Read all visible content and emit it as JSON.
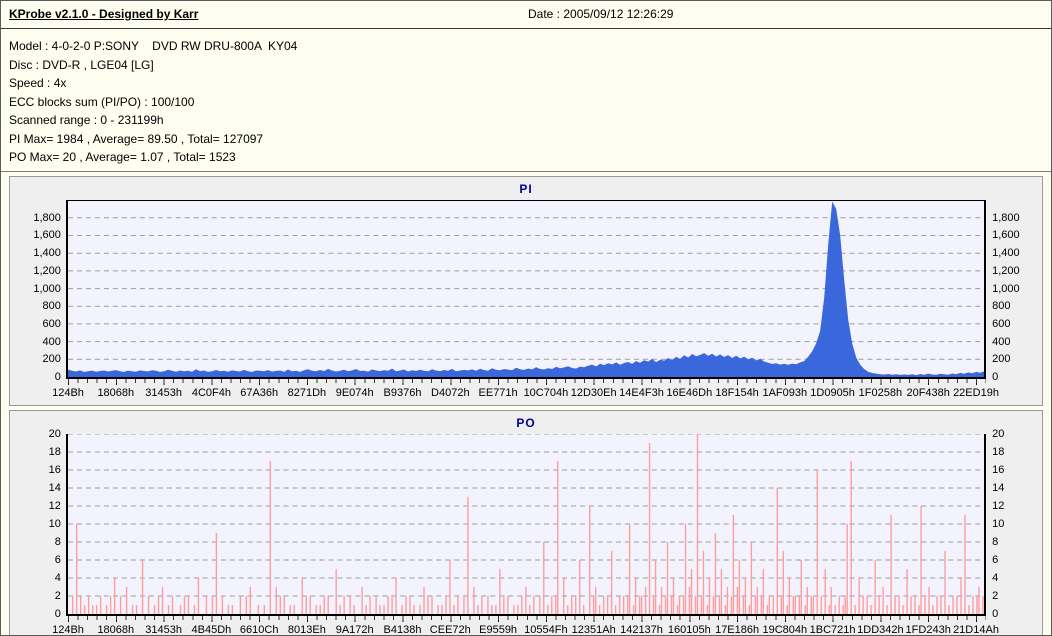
{
  "header": {
    "title": "KProbe v2.1.0 - Designed by Karr",
    "date_label": "Date : 2005/09/12 12:26:29"
  },
  "info": {
    "lines": [
      "Model : 4-0-2-0 P:SONY    DVD RW DRU-800A  KY04",
      "Disc : DVD-R , LGE04 [LG]",
      "Speed : 4x",
      "ECC blocks sum (PI/PO) : 100/100",
      "Scanned range : 0 - 231199h",
      "PI Max= 1984 , Average= 89.50 , Total= 127097",
      "PO Max= 20 , Average= 1.07 , Total= 1523"
    ]
  },
  "colors": {
    "pi_bar": "#3A68DC",
    "po_bar": "#FF9D9D",
    "chart_title": "#00008B",
    "plot_bg": "#F3F3FD",
    "grid": "#9B9B9B",
    "panel_bg": "#EFEFEF",
    "page_bg": "#FDFDF0"
  },
  "chart_data": [
    {
      "type": "area",
      "title": "PI",
      "color": "#3A68DC",
      "ylim": [
        0,
        1990
      ],
      "y_ticks": [
        0,
        200,
        400,
        600,
        800,
        1000,
        1200,
        1400,
        1600,
        1800
      ],
      "grid": true,
      "legend": "none",
      "x_tick_labels": [
        "124Bh",
        "18068h",
        "31453h",
        "4C0F4h",
        "67A36h",
        "8271Dh",
        "9E074h",
        "B9376h",
        "D4072h",
        "EE771h",
        "10C704h",
        "12D30Eh",
        "14E4F3h",
        "16E46Dh",
        "18F154h",
        "1AF093h",
        "1D0905h",
        "1F0258h",
        "20F438h",
        "22ED19h"
      ],
      "values": [
        85,
        70,
        62,
        75,
        58,
        66,
        72,
        60,
        68,
        74,
        62,
        70,
        78,
        64,
        58,
        72,
        66,
        60,
        75,
        68,
        63,
        77,
        70,
        58,
        66,
        82,
        71,
        60,
        74,
        65,
        70,
        60,
        88,
        67,
        73,
        58,
        64,
        79,
        66,
        71,
        59,
        75,
        68,
        62,
        80,
        66,
        58,
        73,
        70,
        64,
        78,
        62,
        69,
        74,
        60,
        85,
        66,
        71,
        58,
        76,
        88,
        70,
        64,
        79,
        67,
        92,
        74,
        62,
        70,
        83,
        66,
        75,
        90,
        68,
        72,
        61,
        86,
        74,
        67,
        78,
        70,
        95,
        66,
        73,
        85,
        62,
        76,
        69,
        81,
        71,
        64,
        88,
        74,
        67,
        79,
        70,
        92,
        65,
        73,
        80,
        75,
        86,
        70,
        94,
        78,
        72,
        99,
        82,
        76,
        90,
        84,
        78,
        105,
        88,
        80,
        96,
        86,
        110,
        92,
        85,
        100,
        90,
        115,
        98,
        108,
        122,
        102,
        96,
        118,
        110,
        128,
        140,
        120,
        150,
        135,
        155,
        142,
        165,
        138,
        158,
        170,
        148,
        180,
        162,
        190,
        175,
        205,
        168,
        195,
        185,
        215,
        190,
        230,
        205,
        245,
        220,
        260,
        235,
        250,
        270,
        240,
        262,
        232,
        255,
        226,
        248,
        215,
        240,
        210,
        230,
        200,
        218,
        188,
        205,
        175,
        160,
        148,
        155,
        140,
        150,
        138,
        152,
        145,
        165,
        180,
        230,
        290,
        380,
        520,
        900,
        1500,
        1984,
        1900,
        1600,
        1100,
        650,
        380,
        220,
        140,
        90,
        60,
        45,
        38,
        32,
        28,
        34,
        26,
        30,
        24,
        28,
        24,
        30,
        22,
        34,
        26,
        38,
        28,
        24,
        36,
        30,
        26,
        40,
        32,
        46,
        36,
        52,
        42,
        58,
        48,
        64
      ]
    },
    {
      "type": "bar",
      "title": "PO",
      "color": "#FF9D9D",
      "ylim": [
        0,
        20
      ],
      "y_ticks": [
        0,
        2,
        4,
        6,
        8,
        10,
        12,
        14,
        16,
        18,
        20
      ],
      "grid": true,
      "legend": "none",
      "x_tick_labels": [
        "124Bh",
        "18068h",
        "31453h",
        "4B45Dh",
        "6610Ch",
        "8013Eh",
        "9A172h",
        "B4138h",
        "CEE72h",
        "E9559h",
        "10554Fh",
        "12351Ah",
        "142137h",
        "160105h",
        "17E186h",
        "19C804h",
        "1BC721h",
        "1DD342h",
        "1FD243h",
        "21D14Ah"
      ],
      "slots": 459,
      "spikes": [
        [
          2,
          2
        ],
        [
          4,
          10
        ],
        [
          6,
          2
        ],
        [
          8,
          1
        ],
        [
          10,
          2
        ],
        [
          12,
          1
        ],
        [
          14,
          1
        ],
        [
          16,
          2
        ],
        [
          19,
          1
        ],
        [
          21,
          2
        ],
        [
          23,
          4
        ],
        [
          26,
          2
        ],
        [
          29,
          3
        ],
        [
          32,
          1
        ],
        [
          34,
          1
        ],
        [
          37,
          6
        ],
        [
          40,
          2
        ],
        [
          43,
          1
        ],
        [
          45,
          2
        ],
        [
          47,
          3
        ],
        [
          50,
          1
        ],
        [
          52,
          2
        ],
        [
          56,
          1
        ],
        [
          58,
          2
        ],
        [
          60,
          2
        ],
        [
          63,
          1
        ],
        [
          65,
          4
        ],
        [
          69,
          2
        ],
        [
          72,
          2
        ],
        [
          74,
          9
        ],
        [
          77,
          2
        ],
        [
          80,
          1
        ],
        [
          82,
          1
        ],
        [
          86,
          2
        ],
        [
          89,
          2
        ],
        [
          91,
          3
        ],
        [
          95,
          1
        ],
        [
          98,
          1
        ],
        [
          101,
          17
        ],
        [
          104,
          3
        ],
        [
          106,
          2
        ],
        [
          108,
          2
        ],
        [
          111,
          1
        ],
        [
          113,
          1
        ],
        [
          117,
          4
        ],
        [
          119,
          2
        ],
        [
          121,
          2
        ],
        [
          124,
          1
        ],
        [
          126,
          1
        ],
        [
          128,
          2
        ],
        [
          130,
          2
        ],
        [
          134,
          5
        ],
        [
          136,
          1
        ],
        [
          138,
          2
        ],
        [
          141,
          2
        ],
        [
          143,
          1
        ],
        [
          147,
          3
        ],
        [
          149,
          1
        ],
        [
          151,
          2
        ],
        [
          154,
          2
        ],
        [
          156,
          1
        ],
        [
          158,
          1
        ],
        [
          160,
          2
        ],
        [
          162,
          2
        ],
        [
          164,
          4
        ],
        [
          167,
          1
        ],
        [
          169,
          2
        ],
        [
          171,
          2
        ],
        [
          173,
          1
        ],
        [
          176,
          1
        ],
        [
          178,
          3
        ],
        [
          180,
          2
        ],
        [
          182,
          2
        ],
        [
          185,
          1
        ],
        [
          187,
          1
        ],
        [
          189,
          2
        ],
        [
          191,
          6
        ],
        [
          193,
          1
        ],
        [
          195,
          2
        ],
        [
          198,
          2
        ],
        [
          200,
          13
        ],
        [
          203,
          3
        ],
        [
          205,
          1
        ],
        [
          207,
          2
        ],
        [
          210,
          2
        ],
        [
          212,
          1
        ],
        [
          214,
          1
        ],
        [
          216,
          5
        ],
        [
          218,
          2
        ],
        [
          220,
          2
        ],
        [
          223,
          1
        ],
        [
          225,
          1
        ],
        [
          227,
          2
        ],
        [
          229,
          3
        ],
        [
          231,
          1
        ],
        [
          233,
          2
        ],
        [
          236,
          2
        ],
        [
          238,
          8
        ],
        [
          240,
          1
        ],
        [
          242,
          2
        ],
        [
          244,
          2
        ],
        [
          245,
          17
        ],
        [
          248,
          4
        ],
        [
          250,
          1
        ],
        [
          252,
          2
        ],
        [
          254,
          2
        ],
        [
          256,
          6
        ],
        [
          258,
          1
        ],
        [
          261,
          12
        ],
        [
          263,
          2
        ],
        [
          264,
          3
        ],
        [
          266,
          1
        ],
        [
          268,
          2
        ],
        [
          270,
          2
        ],
        [
          272,
          7
        ],
        [
          274,
          1
        ],
        [
          276,
          2
        ],
        [
          278,
          2
        ],
        [
          280,
          2
        ],
        [
          281,
          10
        ],
        [
          283,
          1
        ],
        [
          284,
          4
        ],
        [
          286,
          2
        ],
        [
          287,
          2
        ],
        [
          289,
          3
        ],
        [
          291,
          19
        ],
        [
          293,
          2
        ],
        [
          294,
          6
        ],
        [
          296,
          1
        ],
        [
          297,
          3
        ],
        [
          299,
          2
        ],
        [
          300,
          8
        ],
        [
          302,
          2
        ],
        [
          303,
          4
        ],
        [
          305,
          1
        ],
        [
          306,
          2
        ],
        [
          308,
          2
        ],
        [
          309,
          10
        ],
        [
          311,
          3
        ],
        [
          312,
          5
        ],
        [
          314,
          2
        ],
        [
          315,
          20
        ],
        [
          317,
          2
        ],
        [
          318,
          7
        ],
        [
          320,
          1
        ],
        [
          321,
          4
        ],
        [
          323,
          2
        ],
        [
          324,
          9
        ],
        [
          326,
          2
        ],
        [
          327,
          5
        ],
        [
          329,
          1
        ],
        [
          330,
          3
        ],
        [
          332,
          2
        ],
        [
          333,
          11
        ],
        [
          335,
          3
        ],
        [
          336,
          6
        ],
        [
          338,
          2
        ],
        [
          339,
          4
        ],
        [
          341,
          1
        ],
        [
          342,
          8
        ],
        [
          344,
          2
        ],
        [
          345,
          3
        ],
        [
          347,
          2
        ],
        [
          348,
          5
        ],
        [
          350,
          1
        ],
        [
          351,
          2
        ],
        [
          353,
          2
        ],
        [
          355,
          14
        ],
        [
          357,
          2
        ],
        [
          358,
          7
        ],
        [
          360,
          1
        ],
        [
          361,
          4
        ],
        [
          363,
          2
        ],
        [
          364,
          2
        ],
        [
          366,
          2
        ],
        [
          367,
          6
        ],
        [
          369,
          1
        ],
        [
          370,
          3
        ],
        [
          372,
          2
        ],
        [
          373,
          2
        ],
        [
          375,
          16
        ],
        [
          377,
          2
        ],
        [
          379,
          5
        ],
        [
          381,
          1
        ],
        [
          382,
          3
        ],
        [
          384,
          1
        ],
        [
          386,
          2
        ],
        [
          388,
          1
        ],
        [
          389,
          2
        ],
        [
          390,
          10
        ],
        [
          392,
          17
        ],
        [
          394,
          1
        ],
        [
          396,
          4
        ],
        [
          398,
          2
        ],
        [
          400,
          2
        ],
        [
          402,
          1
        ],
        [
          404,
          6
        ],
        [
          406,
          2
        ],
        [
          408,
          3
        ],
        [
          410,
          1
        ],
        [
          412,
          11
        ],
        [
          414,
          2
        ],
        [
          416,
          2
        ],
        [
          418,
          1
        ],
        [
          420,
          5
        ],
        [
          422,
          2
        ],
        [
          424,
          2
        ],
        [
          426,
          1
        ],
        [
          427,
          12
        ],
        [
          429,
          2
        ],
        [
          431,
          3
        ],
        [
          433,
          1
        ],
        [
          435,
          2
        ],
        [
          437,
          2
        ],
        [
          439,
          7
        ],
        [
          441,
          1
        ],
        [
          443,
          2
        ],
        [
          445,
          2
        ],
        [
          447,
          4
        ],
        [
          449,
          11
        ],
        [
          451,
          1
        ],
        [
          453,
          2
        ],
        [
          455,
          2
        ],
        [
          456,
          3
        ],
        [
          458,
          2
        ]
      ]
    }
  ]
}
